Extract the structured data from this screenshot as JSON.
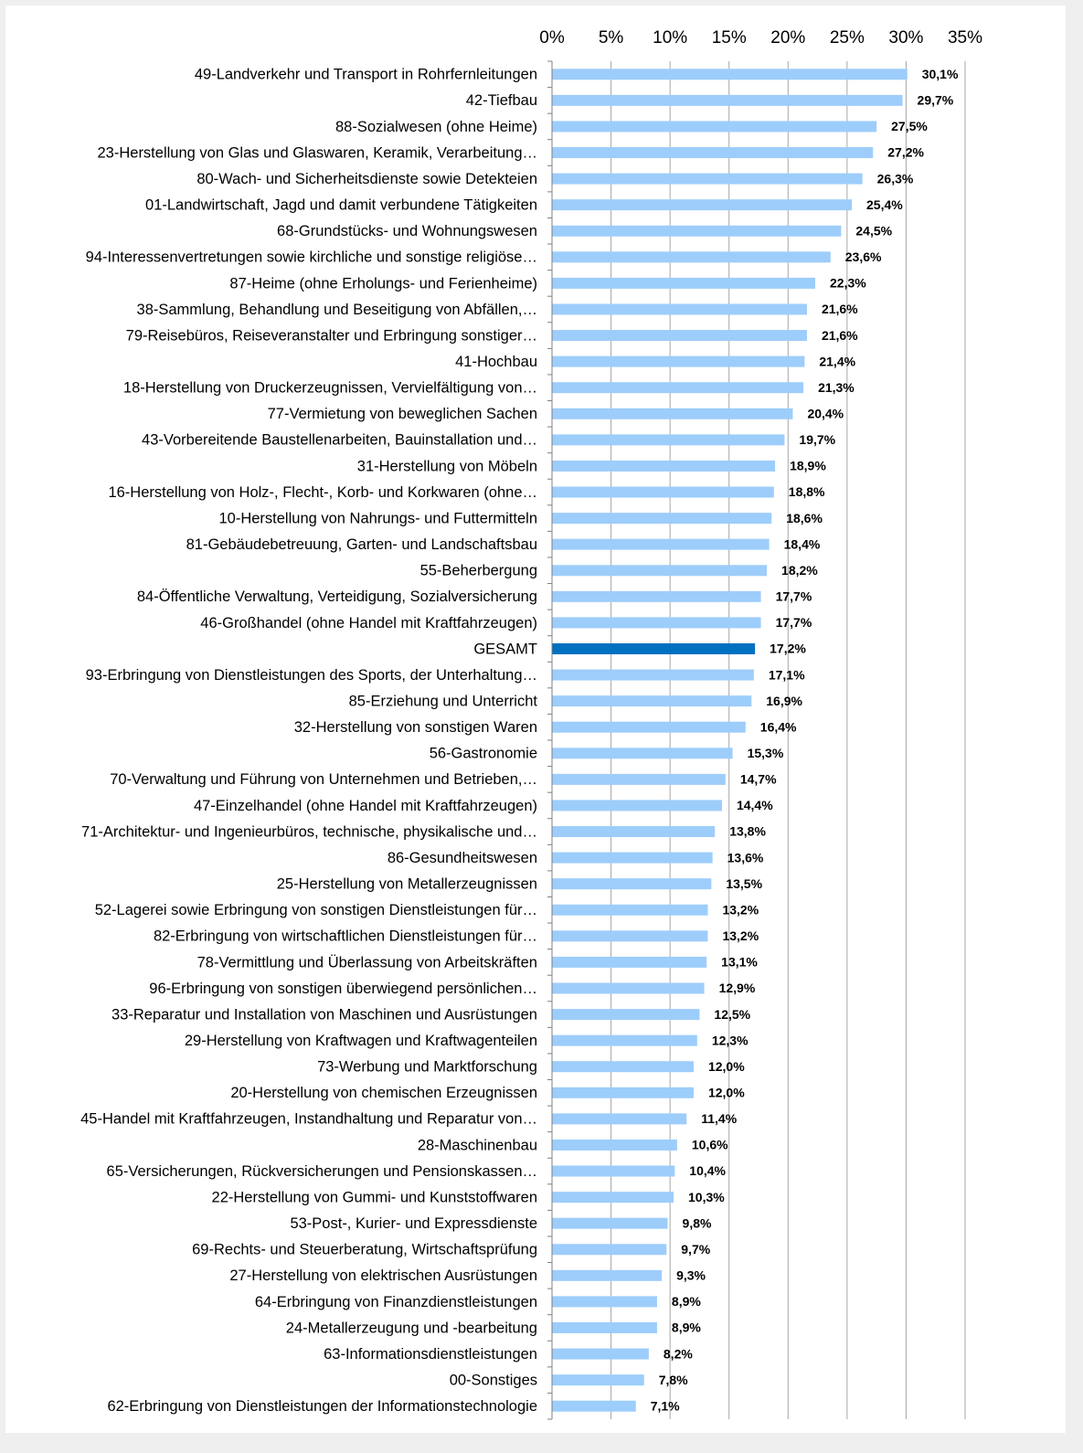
{
  "chart_data": {
    "type": "bar",
    "orientation": "horizontal",
    "categories": [
      "49-Landverkehr und Transport in Rohrfernleitungen",
      "42-Tiefbau",
      "88-Sozialwesen (ohne Heime)",
      "23-Herstellung von Glas und Glaswaren, Keramik, Verarbeitung…",
      "80-Wach- und Sicherheitsdienste sowie Detekteien",
      "01-Landwirtschaft, Jagd und damit verbundene Tätigkeiten",
      "68-Grundstücks- und Wohnungswesen",
      "94-Interessenvertretungen sowie kirchliche und sonstige religiöse…",
      "87-Heime (ohne Erholungs- und Ferienheime)",
      "38-Sammlung, Behandlung und Beseitigung von Abfällen,…",
      "79-Reisebüros, Reiseveranstalter und Erbringung sonstiger…",
      "41-Hochbau",
      "18-Herstellung von Druckerzeugnissen, Vervielfältigung von…",
      "77-Vermietung von beweglichen Sachen",
      "43-Vorbereitende Baustellenarbeiten, Bauinstallation und…",
      "31-Herstellung von Möbeln",
      "16-Herstellung von Holz-, Flecht-, Korb- und Korkwaren (ohne…",
      "10-Herstellung von Nahrungs- und Futtermitteln",
      "81-Gebäudebetreuung, Garten- und Landschaftsbau",
      "55-Beherbergung",
      "84-Öffentliche Verwaltung, Verteidigung, Sozialversicherung",
      "46-Großhandel (ohne Handel mit Kraftfahrzeugen)",
      "GESAMT",
      "93-Erbringung von Dienstleistungen des Sports, der Unterhaltung…",
      "85-Erziehung und Unterricht",
      "32-Herstellung von sonstigen Waren",
      "56-Gastronomie",
      "70-Verwaltung und Führung von Unternehmen und Betrieben,…",
      "47-Einzelhandel (ohne Handel mit Kraftfahrzeugen)",
      "71-Architektur- und Ingenieurbüros, technische, physikalische und…",
      "86-Gesundheitswesen",
      "25-Herstellung von Metallerzeugnissen",
      "52-Lagerei sowie Erbringung von sonstigen Dienstleistungen für…",
      "82-Erbringung von wirtschaftlichen Dienstleistungen für…",
      "78-Vermittlung und Überlassung von Arbeitskräften",
      "96-Erbringung von sonstigen überwiegend persönlichen…",
      "33-Reparatur und Installation von Maschinen und Ausrüstungen",
      "29-Herstellung von Kraftwagen und Kraftwagenteilen",
      "73-Werbung und Marktforschung",
      "20-Herstellung von chemischen Erzeugnissen",
      "45-Handel mit Kraftfahrzeugen, Instandhaltung und Reparatur von…",
      "28-Maschinenbau",
      "65-Versicherungen, Rückversicherungen und Pensionskassen…",
      "22-Herstellung von Gummi- und Kunststoffwaren",
      "53-Post-, Kurier- und Expressdienste",
      "69-Rechts- und Steuerberatung, Wirtschaftsprüfung",
      "27-Herstellung von elektrischen Ausrüstungen",
      "64-Erbringung von Finanzdienstleistungen",
      "24-Metallerzeugung und -bearbeitung",
      "63-Informationsdienstleistungen",
      "00-Sonstiges",
      "62-Erbringung von Dienstleistungen der Informationstechnologie"
    ],
    "values": [
      30.1,
      29.7,
      27.5,
      27.2,
      26.3,
      25.4,
      24.5,
      23.6,
      22.3,
      21.6,
      21.6,
      21.4,
      21.3,
      20.4,
      19.7,
      18.9,
      18.8,
      18.6,
      18.4,
      18.2,
      17.7,
      17.7,
      17.2,
      17.1,
      16.9,
      16.4,
      15.3,
      14.7,
      14.4,
      13.8,
      13.6,
      13.5,
      13.2,
      13.2,
      13.1,
      12.9,
      12.5,
      12.3,
      12.0,
      12.0,
      11.4,
      10.6,
      10.4,
      10.3,
      9.8,
      9.7,
      9.3,
      8.9,
      8.9,
      8.2,
      7.8,
      7.1
    ],
    "value_labels": [
      "30,1%",
      "29,7%",
      "27,5%",
      "27,2%",
      "26,3%",
      "25,4%",
      "24,5%",
      "23,6%",
      "22,3%",
      "21,6%",
      "21,6%",
      "21,4%",
      "21,3%",
      "20,4%",
      "19,7%",
      "18,9%",
      "18,8%",
      "18,6%",
      "18,4%",
      "18,2%",
      "17,7%",
      "17,7%",
      "17,2%",
      "17,1%",
      "16,9%",
      "16,4%",
      "15,3%",
      "14,7%",
      "14,4%",
      "13,8%",
      "13,6%",
      "13,5%",
      "13,2%",
      "13,2%",
      "13,1%",
      "12,9%",
      "12,5%",
      "12,3%",
      "12,0%",
      "12,0%",
      "11,4%",
      "10,6%",
      "10,4%",
      "10,3%",
      "9,8%",
      "9,7%",
      "9,3%",
      "8,9%",
      "8,9%",
      "8,2%",
      "7,8%",
      "7,1%"
    ],
    "colors": [
      "#9dcdfb",
      "#9dcdfb",
      "#9dcdfb",
      "#9dcdfb",
      "#9dcdfb",
      "#9dcdfb",
      "#9dcdfb",
      "#9dcdfb",
      "#9dcdfb",
      "#9dcdfb",
      "#9dcdfb",
      "#9dcdfb",
      "#9dcdfb",
      "#9dcdfb",
      "#9dcdfb",
      "#9dcdfb",
      "#9dcdfb",
      "#9dcdfb",
      "#9dcdfb",
      "#9dcdfb",
      "#9dcdfb",
      "#9dcdfb",
      "#0070c0",
      "#9dcdfb",
      "#9dcdfb",
      "#9dcdfb",
      "#9dcdfb",
      "#9dcdfb",
      "#9dcdfb",
      "#9dcdfb",
      "#9dcdfb",
      "#9dcdfb",
      "#9dcdfb",
      "#9dcdfb",
      "#9dcdfb",
      "#9dcdfb",
      "#9dcdfb",
      "#9dcdfb",
      "#9dcdfb",
      "#9dcdfb",
      "#9dcdfb",
      "#9dcdfb",
      "#9dcdfb",
      "#9dcdfb",
      "#9dcdfb",
      "#9dcdfb",
      "#9dcdfb",
      "#9dcdfb",
      "#9dcdfb",
      "#9dcdfb",
      "#9dcdfb",
      "#9dcdfb"
    ],
    "xlim": [
      0,
      35
    ],
    "xticks": [
      {
        "value": 0,
        "label": "0%"
      },
      {
        "value": 5,
        "label": "5%"
      },
      {
        "value": 10,
        "label": "10%"
      },
      {
        "value": 15,
        "label": "15%"
      },
      {
        "value": 20,
        "label": "20%"
      },
      {
        "value": 25,
        "label": "25%"
      },
      {
        "value": 30,
        "label": "30%"
      },
      {
        "value": 35,
        "label": "35%"
      }
    ],
    "grid": true
  }
}
